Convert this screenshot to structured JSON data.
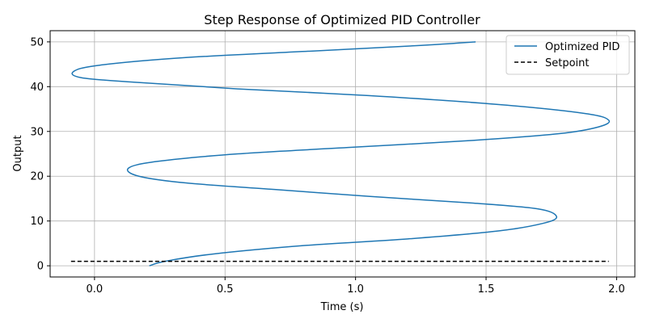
{
  "chart_data": {
    "type": "line",
    "title": "Step Response of Optimized PID Controller",
    "xlabel": "Time (s)",
    "ylabel": "Output",
    "xlim": [
      -0.17,
      2.07
    ],
    "ylim": [
      -2.5,
      52.5
    ],
    "xticks": [
      0.0,
      0.5,
      1.0,
      1.5,
      2.0
    ],
    "xtick_labels": [
      "0.0",
      "0.5",
      "1.0",
      "1.5",
      "2.0"
    ],
    "yticks": [
      0,
      10,
      20,
      30,
      40,
      50
    ],
    "ytick_labels": [
      "0",
      "10",
      "20",
      "30",
      "40",
      "50"
    ],
    "grid": true,
    "legend_position": "top-right",
    "series": [
      {
        "name": "Optimized PID",
        "color": "#1f77b4",
        "style": "solid",
        "x": [
          0.21,
          0.27,
          0.45,
          0.8,
          1.2,
          1.55,
          1.72,
          1.77,
          1.7,
          1.45,
          1.05,
          0.7,
          0.35,
          0.17,
          0.13,
          0.24,
          0.55,
          1.0,
          1.45,
          1.78,
          1.93,
          1.97,
          1.88,
          1.55,
          1.05,
          0.55,
          0.15,
          -0.05,
          -0.08,
          0.02,
          0.35,
          0.85,
          1.25,
          1.46
        ],
        "y": [
          0,
          1.0,
          2.6,
          4.5,
          6.0,
          7.8,
          9.5,
          11.0,
          12.7,
          14.0,
          15.5,
          17.0,
          18.5,
          20.0,
          21.8,
          23.3,
          25.0,
          26.5,
          28.0,
          29.5,
          31.0,
          32.5,
          34.0,
          36.0,
          38.0,
          39.5,
          41.0,
          42.0,
          43.4,
          44.8,
          46.5,
          48.0,
          49.2,
          50.0
        ]
      },
      {
        "name": "Setpoint",
        "color": "#000000",
        "style": "dashed",
        "x": [
          -0.09,
          1.97
        ],
        "y": [
          1,
          1
        ]
      }
    ]
  }
}
